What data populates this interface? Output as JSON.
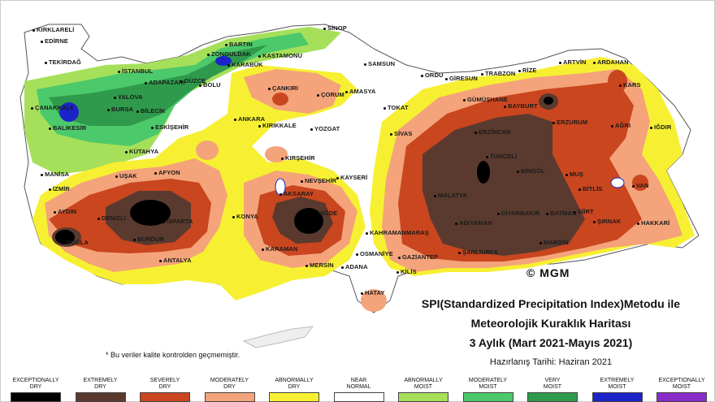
{
  "title": {
    "line1": "SPI(Standardized Precipitation Index)Metodu ile",
    "line2": "Meteorolojik Kuraklık Haritası",
    "line3": "3 Aylık (Mart 2021-Mayıs 2021)",
    "date": "Hazırlanış Tarihi: Haziran 2021"
  },
  "note": "* Bu veriler kalite kontrolden geçmemiştir.",
  "logo": "© MGM",
  "colors": {
    "exceptionally_dry": "#000000",
    "extremely_dry": "#5a3a2e",
    "severely_dry": "#c9461f",
    "moderately_dry": "#f4a37a",
    "abnormally_dry": "#f7f032",
    "near_normal": "#ffffff",
    "abnormally_moist": "#a6e05a",
    "moderately_moist": "#4cc96a",
    "very_moist": "#2f9a4c",
    "extremely_moist": "#1b24c8",
    "exceptionally_moist": "#8a2cc8"
  },
  "legend": [
    {
      "label1": "EXCEPTIONALLY",
      "label2": "DRY",
      "color": "#000000"
    },
    {
      "label1": "EXTREMELY",
      "label2": "DRY",
      "color": "#5a3a2e"
    },
    {
      "label1": "SEVERELY",
      "label2": "DRY",
      "color": "#c9461f"
    },
    {
      "label1": "MODERATELY",
      "label2": "DRY",
      "color": "#f4a37a"
    },
    {
      "label1": "ABNORMALLY",
      "label2": "DRY",
      "color": "#f7f032"
    },
    {
      "label1": "NEAR",
      "label2": "NORMAL",
      "color": "#ffffff"
    },
    {
      "label1": "ABNORMALLY",
      "label2": "MOIST",
      "color": "#a6e05a"
    },
    {
      "label1": "MODERATELY",
      "label2": "MOIST",
      "color": "#4cc96a"
    },
    {
      "label1": "VERY",
      "label2": "MOIST",
      "color": "#2f9a4c"
    },
    {
      "label1": "EXTREMELY",
      "label2": "MOIST",
      "color": "#1b24c8"
    },
    {
      "label1": "EXCEPTIONALLY",
      "label2": "MOIST",
      "color": "#8a2cc8"
    }
  ],
  "cities": [
    "KIRKLARELİ",
    "EDİRNE",
    "TEKİRDAĞ",
    "İSTANBUL",
    "ÇANAKKALE",
    "BALIKESİR",
    "BURSA",
    "BİLECİK",
    "YALOVA",
    "ADAPAZARI",
    "DÜZCE",
    "BOLU",
    "BARTIN",
    "ZONGULDAK",
    "KARABÜK",
    "KASTAMONU",
    "SİNOP",
    "SAMSUN",
    "AMASYA",
    "ÇORUM",
    "ÇANKIRI",
    "ANKARA",
    "KIRIKKALE",
    "YOZGAT",
    "TOKAT",
    "ORDU",
    "GİRESUN",
    "TRABZON",
    "RİZE",
    "ARTVİN",
    "ARDAHAN",
    "KARS",
    "IĞDIR",
    "AĞRI",
    "ERZURUM",
    "BAYBURT",
    "GÜMÜŞHANE",
    "ERZİNCAN",
    "SİVAS",
    "TUNCELİ",
    "BİNGÖL",
    "MUŞ",
    "BİTLİS",
    "VAN",
    "HAKKARİ",
    "ŞIRNAK",
    "SİİRT",
    "BATMAN",
    "MARDİN",
    "DİYARBAKIR",
    "ŞANLIURFA",
    "ADIYAMAN",
    "MALATYA",
    "KAHRAMANMARAŞ",
    "GAZİANTEP",
    "KİLİS",
    "OSMANİYE",
    "ADANA",
    "HATAY",
    "MERSİN",
    "KARAMAN",
    "KONYA",
    "AKSARAY",
    "NEVŞEHİR",
    "KAYSERİ",
    "KIRŞEHİR",
    "NİĞDE",
    "ESKİŞEHİR",
    "KÜTAHYA",
    "AFYON",
    "UŞAK",
    "MANİSA",
    "İZMİR",
    "AYDIN",
    "DENİZLİ",
    "MUĞLA",
    "ANTALYA",
    "ISPARTA",
    "BURDUR"
  ]
}
